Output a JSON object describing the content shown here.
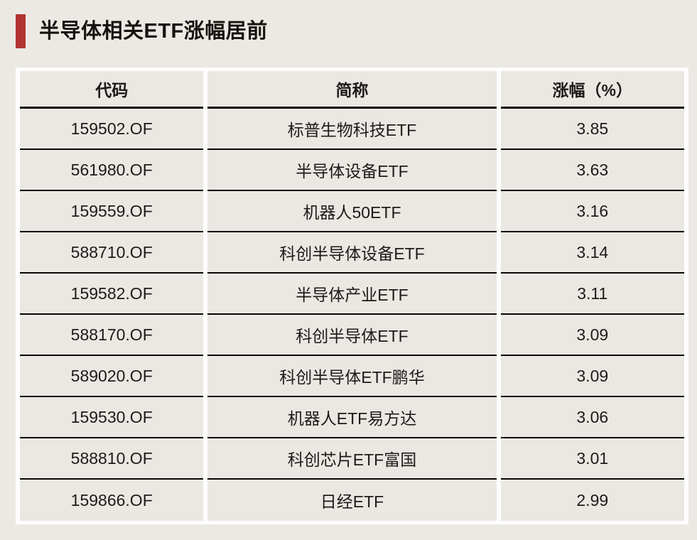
{
  "page": {
    "background_color": "#ece9e4",
    "accent_color": "#b23431",
    "gutter_color": "#fdfdfd",
    "cell_color": "#ebe8e3",
    "border_color": "#060606"
  },
  "title": {
    "text": "半导体相关ETF涨幅居前"
  },
  "table": {
    "columns": [
      "代码",
      "简称",
      "涨幅（%）"
    ],
    "rows": [
      [
        "159502.OF",
        "标普生物科技ETF",
        "3.85"
      ],
      [
        "561980.OF",
        "半导体设备ETF",
        "3.63"
      ],
      [
        "159559.OF",
        "机器人50ETF",
        "3.16"
      ],
      [
        "588710.OF",
        "科创半导体设备ETF",
        "3.14"
      ],
      [
        "159582.OF",
        "半导体产业ETF",
        "3.11"
      ],
      [
        "588170.OF",
        "科创半导体ETF",
        "3.09"
      ],
      [
        "589020.OF",
        "科创半导体ETF鹏华",
        "3.09"
      ],
      [
        "159530.OF",
        "机器人ETF易方达",
        "3.06"
      ],
      [
        "588810.OF",
        "科创芯片ETF富国",
        "3.01"
      ],
      [
        "159866.OF",
        "日经ETF",
        "2.99"
      ]
    ]
  },
  "chart_data": {
    "type": "table",
    "title": "半导体相关ETF涨幅居前",
    "columns": [
      "代码",
      "简称",
      "涨幅（%）"
    ],
    "categories": [
      "标普生物科技ETF",
      "半导体设备ETF",
      "机器人50ETF",
      "科创半导体设备ETF",
      "半导体产业ETF",
      "科创半导体ETF",
      "科创半导体ETF鹏华",
      "机器人ETF易方达",
      "科创芯片ETF富国",
      "日经ETF"
    ],
    "codes": [
      "159502.OF",
      "561980.OF",
      "159559.OF",
      "588710.OF",
      "159582.OF",
      "588170.OF",
      "589020.OF",
      "159530.OF",
      "588810.OF",
      "159866.OF"
    ],
    "values": [
      3.85,
      3.63,
      3.16,
      3.14,
      3.11,
      3.09,
      3.09,
      3.06,
      3.01,
      2.99
    ],
    "ylabel": "涨幅（%）"
  }
}
